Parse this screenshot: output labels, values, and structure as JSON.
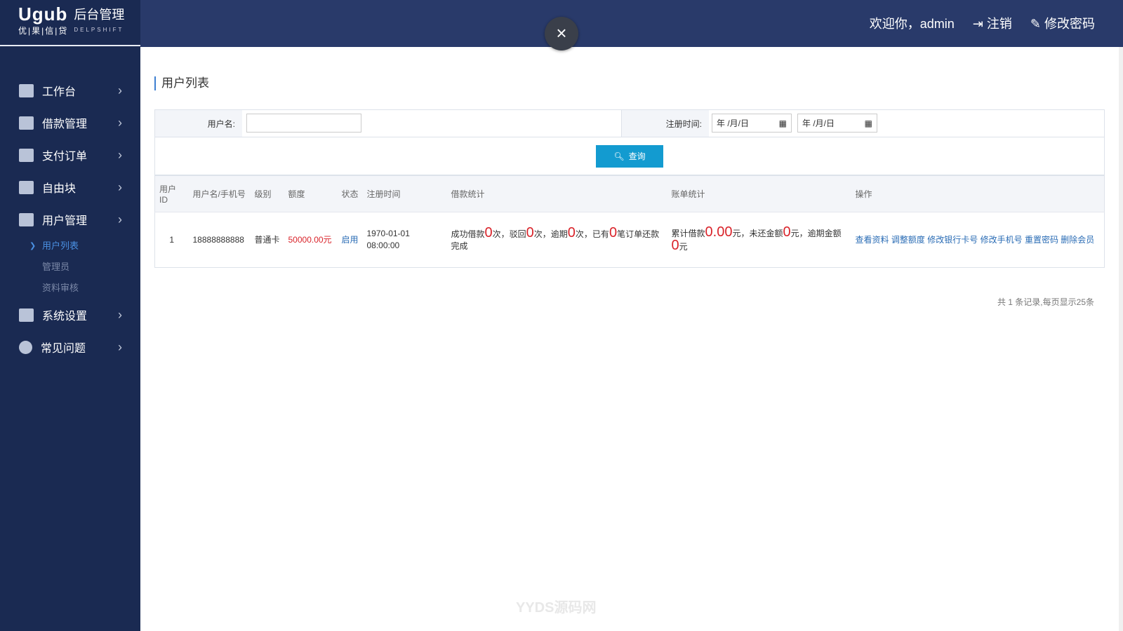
{
  "brand": {
    "logo": "Ugub",
    "logo_sub": "优|果|信|贷",
    "title": "后台管理",
    "title_sub": "DELPSHIFT"
  },
  "header": {
    "welcome": "欢迎你，admin",
    "logout": "注销",
    "change_password": "修改密码",
    "close": "×"
  },
  "sidebar": {
    "items": [
      {
        "label": "工作台",
        "icon": "monitor-icon"
      },
      {
        "label": "借款管理",
        "icon": "document-icon"
      },
      {
        "label": "支付订单",
        "icon": "card-icon"
      },
      {
        "label": "自由块",
        "icon": "grid-icon"
      },
      {
        "label": "用户管理",
        "icon": "user-icon"
      },
      {
        "label": "系统设置",
        "icon": "windows-icon"
      },
      {
        "label": "常见问题",
        "icon": "question-icon"
      }
    ],
    "subitems": [
      {
        "label": "用户列表",
        "active": true
      },
      {
        "label": "管理员"
      },
      {
        "label": "资料审核"
      }
    ]
  },
  "page": {
    "title": "用户列表"
  },
  "filter": {
    "username_label": "用户名:",
    "username_value": "",
    "reg_time_label": "注册时间:",
    "date_placeholder": "年 /月/日",
    "search": "查询"
  },
  "table": {
    "headers": [
      "用户ID",
      "用户名/手机号",
      "级别",
      "额度",
      "状态",
      "注册时间",
      "借款统计",
      "账单统计",
      "操作"
    ],
    "rows": [
      {
        "id": "1",
        "username": "18888888888",
        "level": "普通卡",
        "limit": "50000.00元",
        "status": "启用",
        "reg_time": "1970-01-01 08:00:00",
        "loan": {
          "p1": "成功借款",
          "v1": "0",
          "p2": "次，驳回",
          "v2": "0",
          "p3": "次，逾期",
          "v3": "0",
          "p4": "次，已有",
          "v4": "0",
          "p5": "笔订单还款完成"
        },
        "bill": {
          "p1": "累计借款",
          "v1": "0.00",
          "p2": "元，未还金额",
          "v2": "0",
          "p3": "元，逾期金额",
          "v3": "0",
          "p4": "元"
        },
        "actions": [
          "查看资料",
          "调整额度",
          "修改银行卡号",
          "修改手机号",
          "重置密码",
          "删除会员"
        ]
      }
    ]
  },
  "pager": "共 1 条记录,每页显示25条",
  "watermark": "YYDS源码网",
  "colors": {
    "sidebar": "#1a2a52",
    "header": "#293a6a",
    "accent": "#139bd0",
    "red": "#d9232a"
  }
}
